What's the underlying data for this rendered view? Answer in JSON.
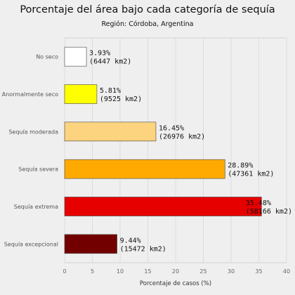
{
  "chart_data": {
    "type": "bar",
    "orientation": "horizontal",
    "title": "Porcentaje del área bajo cada categoría de sequía",
    "subtitle": "Región: Córdoba, Argentina",
    "xlabel": "Porcentaje de casos (%)",
    "ylabel": "",
    "xlim": [
      0,
      40
    ],
    "xticks": [
      "0",
      "5",
      "10",
      "15",
      "20",
      "25",
      "30",
      "35",
      "40"
    ],
    "grid": true,
    "categories": [
      "No seco",
      "Anormalmente seco",
      "Sequía moderada",
      "Sequía severa",
      "Sequía extrema",
      "Sequía excepcional"
    ],
    "values": [
      3.93,
      5.81,
      16.45,
      28.89,
      35.48,
      9.44
    ],
    "data_labels": [
      [
        "3.93%",
        "(6447 km2)"
      ],
      [
        "5.81%",
        "(9525 km2)"
      ],
      [
        "16.45%",
        "(26976 km2)"
      ],
      [
        "28.89%",
        "(47361 km2)"
      ],
      [
        "35.48%",
        "(58166 km2)"
      ],
      [
        "9.44%",
        "(15472 km2)"
      ]
    ],
    "colors": [
      "#ffffff",
      "#ffff00",
      "#fcd37f",
      "#ffaa00",
      "#e60000",
      "#730000"
    ]
  }
}
